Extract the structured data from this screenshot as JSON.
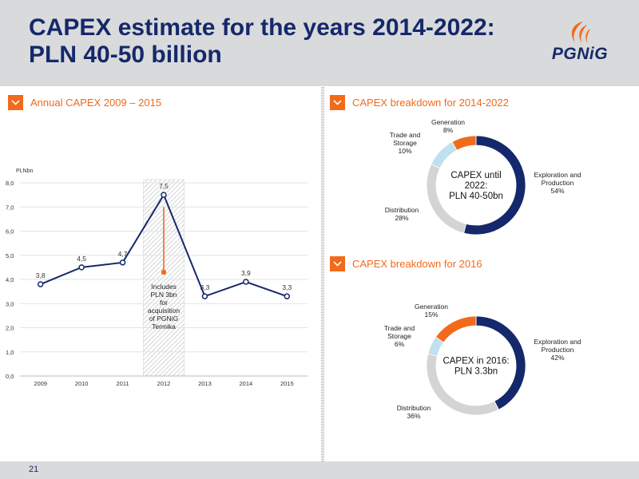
{
  "header": {
    "title_line1": "CAPEX estimate for the years 2014-2022:",
    "title_line2": "PLN 40-50 billion",
    "logo_text": "PGNiG"
  },
  "footer": {
    "page_number": "21"
  },
  "colors": {
    "navy": "#15286b",
    "orange": "#f26a1b",
    "light_blue": "#bfe0ee",
    "grey": "#d4d4d4"
  },
  "icons": {
    "panel_marker": "chevron-down-icon",
    "logo": "flame-logo-icon"
  },
  "chart_data": [
    {
      "type": "line",
      "title": "Annual CAPEX 2009 – 2015",
      "ylabel": "PLNbn",
      "categories": [
        "2009",
        "2010",
        "2011",
        "2012",
        "2013",
        "2014",
        "2015"
      ],
      "values": [
        3.8,
        4.5,
        4.7,
        7.5,
        3.3,
        3.9,
        3.3
      ],
      "value_labels": [
        "3,8",
        "4,5",
        "4,7",
        "7,5",
        "3,3",
        "3,9",
        "3,3"
      ],
      "ylim": [
        0,
        8
      ],
      "yticks": [
        "0,0",
        "1,0",
        "2,0",
        "3,0",
        "4,0",
        "5,0",
        "6,0",
        "7,0",
        "8,0"
      ],
      "grid": true,
      "highlight_category": "2012",
      "annotation": "Includes PLN 3bn for acquisition of PGNiG Termika",
      "annotation_lines": [
        "Includes",
        "PLN 3bn",
        "for",
        "acquisition",
        "of PGNiG",
        "Termika"
      ],
      "arrow_from_value": 7.0,
      "arrow_to_value": 4.3
    },
    {
      "type": "pie",
      "title": "CAPEX breakdown for 2014-2022",
      "center_text": [
        "CAPEX until",
        "2022:",
        "PLN 40-50bn"
      ],
      "slices": [
        {
          "name": "Exploration and Production",
          "label_lines": [
            "Exploration and",
            "Production"
          ],
          "value": 54,
          "value_label": "54%",
          "color": "#15286b"
        },
        {
          "name": "Distribution",
          "label_lines": [
            "Distribution"
          ],
          "value": 28,
          "value_label": "28%",
          "color": "#d4d4d4"
        },
        {
          "name": "Trade and Storage",
          "label_lines": [
            "Trade and",
            "Storage"
          ],
          "value": 10,
          "value_label": "10%",
          "color": "#bfe0ee"
        },
        {
          "name": "Generation",
          "label_lines": [
            "Generation"
          ],
          "value": 8,
          "value_label": "8%",
          "color": "#f26a1b"
        }
      ]
    },
    {
      "type": "pie",
      "title": "CAPEX breakdown for 2016",
      "center_text": [
        "CAPEX in 2016:",
        "PLN 3.3bn"
      ],
      "slices": [
        {
          "name": "Exploration and Production",
          "label_lines": [
            "Exploration and",
            "Production"
          ],
          "value": 42,
          "value_label": "42%",
          "color": "#15286b"
        },
        {
          "name": "Distribution",
          "label_lines": [
            "Distribution"
          ],
          "value": 36,
          "value_label": "36%",
          "color": "#d4d4d4"
        },
        {
          "name": "Trade and Storage",
          "label_lines": [
            "Trade and",
            "Storage"
          ],
          "value": 6,
          "value_label": "6%",
          "color": "#bfe0ee"
        },
        {
          "name": "Generation",
          "label_lines": [
            "Generation"
          ],
          "value": 15,
          "value_label": "15%",
          "color": "#f26a1b"
        }
      ]
    }
  ]
}
